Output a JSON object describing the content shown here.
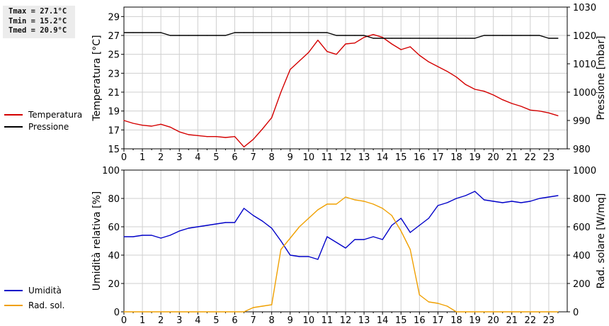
{
  "stats": {
    "tmax": "Tmax = 27.1°C",
    "tmin": "Tmin = 15.2°C",
    "tmed": "Tmed = 20.9°C"
  },
  "colors": {
    "temperature": "#d40000",
    "pressure": "#000000",
    "humidity": "#0000c8",
    "solar": "#f0a000",
    "grid": "#cfcfcf"
  },
  "chart_data": [
    {
      "type": "line",
      "ylabel": "Temperatura [°C]",
      "ylabel2": "Pressione [mbar]",
      "xlim": [
        0,
        24
      ],
      "ylim": [
        15,
        30
      ],
      "ylim2": [
        980,
        1030
      ],
      "xticks": [
        "0",
        "1",
        "2",
        "3",
        "4",
        "5",
        "6",
        "7",
        "8",
        "9",
        "10",
        "11",
        "12",
        "13",
        "14",
        "15",
        "16",
        "17",
        "18",
        "19",
        "20",
        "21",
        "22",
        "23"
      ],
      "yticks": [
        "15",
        "17",
        "19",
        "21",
        "23",
        "25",
        "27",
        "29"
      ],
      "yticks2": [
        "980",
        "990",
        "1000",
        "1010",
        "1020",
        "1030"
      ],
      "grid": true,
      "legend_position": "left",
      "series": [
        {
          "name": "Temperatura",
          "axis": "left",
          "x": [
            0,
            0.5,
            1,
            1.5,
            2,
            2.5,
            3,
            3.5,
            4,
            4.5,
            5,
            5.5,
            6,
            6.5,
            7,
            7.5,
            8,
            8.5,
            9,
            9.5,
            10,
            10.5,
            11,
            11.5,
            12,
            12.5,
            13,
            13.5,
            14,
            14.5,
            15,
            15.5,
            16,
            16.5,
            17,
            17.5,
            18,
            18.5,
            19,
            19.5,
            20,
            20.5,
            21,
            21.5,
            22,
            22.5,
            23,
            23.5
          ],
          "y": [
            18.0,
            17.7,
            17.5,
            17.4,
            17.6,
            17.3,
            16.8,
            16.5,
            16.4,
            16.3,
            16.3,
            16.2,
            16.3,
            15.2,
            16.0,
            17.1,
            18.3,
            21.0,
            23.4,
            24.3,
            25.2,
            26.5,
            25.3,
            25.0,
            26.1,
            26.2,
            26.8,
            27.1,
            26.8,
            26.1,
            25.5,
            25.8,
            24.9,
            24.2,
            23.7,
            23.2,
            22.6,
            21.8,
            21.3,
            21.1,
            20.7,
            20.2,
            19.8,
            19.5,
            19.1,
            19.0,
            18.8,
            18.5
          ]
        },
        {
          "name": "Pressione",
          "axis": "right",
          "x": [
            0,
            0.5,
            1,
            1.5,
            2,
            2.5,
            3,
            3.5,
            4,
            4.5,
            5,
            5.5,
            6,
            6.5,
            7,
            7.5,
            8,
            8.5,
            9,
            9.5,
            10,
            10.5,
            11,
            11.5,
            12,
            12.5,
            13,
            13.5,
            14,
            14.5,
            15,
            15.5,
            16,
            16.5,
            17,
            17.5,
            18,
            18.5,
            19,
            19.5,
            20,
            20.5,
            21,
            21.5,
            22,
            22.5,
            23,
            23.5
          ],
          "y": [
            1021,
            1021,
            1021,
            1021,
            1021,
            1020,
            1020,
            1020,
            1020,
            1020,
            1020,
            1020,
            1021,
            1021,
            1021,
            1021,
            1021,
            1021,
            1021,
            1021,
            1021,
            1021,
            1021,
            1020,
            1020,
            1020,
            1020,
            1019,
            1019,
            1019,
            1019,
            1019,
            1019,
            1019,
            1019,
            1019,
            1019,
            1019,
            1019,
            1020,
            1020,
            1020,
            1020,
            1020,
            1020,
            1020,
            1019,
            1019
          ]
        }
      ]
    },
    {
      "type": "line",
      "ylabel": "Umidità relativa [%]",
      "ylabel2": "Rad. solare [W/mq]",
      "xlim": [
        0,
        24
      ],
      "ylim": [
        0,
        100
      ],
      "ylim2": [
        0,
        1000
      ],
      "xticks": [
        "0",
        "1",
        "2",
        "3",
        "4",
        "5",
        "6",
        "7",
        "8",
        "9",
        "10",
        "11",
        "12",
        "13",
        "14",
        "15",
        "16",
        "17",
        "18",
        "19",
        "20",
        "21",
        "22",
        "23"
      ],
      "yticks": [
        "0",
        "20",
        "40",
        "60",
        "80",
        "100"
      ],
      "yticks2": [
        "0",
        "200",
        "400",
        "600",
        "800",
        "1000"
      ],
      "grid": true,
      "legend_position": "left",
      "series": [
        {
          "name": "Umidità",
          "axis": "left",
          "x": [
            0,
            0.5,
            1,
            1.5,
            2,
            2.5,
            3,
            3.5,
            4,
            4.5,
            5,
            5.5,
            6,
            6.5,
            7,
            7.5,
            8,
            8.5,
            9,
            9.5,
            10,
            10.5,
            11,
            11.5,
            12,
            12.5,
            13,
            13.5,
            14,
            14.5,
            15,
            15.5,
            16,
            16.5,
            17,
            17.5,
            18,
            18.5,
            19,
            19.5,
            20,
            20.5,
            21,
            21.5,
            22,
            22.5,
            23,
            23.5
          ],
          "y": [
            53,
            53,
            54,
            54,
            52,
            54,
            57,
            59,
            60,
            61,
            62,
            63,
            63,
            73,
            68,
            64,
            59,
            50,
            40,
            39,
            39,
            37,
            53,
            49,
            45,
            51,
            51,
            53,
            51,
            61,
            66,
            56,
            61,
            66,
            75,
            77,
            80,
            82,
            85,
            79,
            78,
            77,
            78,
            77,
            78,
            80,
            81,
            82
          ]
        },
        {
          "name": "Rad. sol.",
          "axis": "right",
          "x": [
            0,
            0.5,
            1,
            1.5,
            2,
            2.5,
            3,
            3.5,
            4,
            4.5,
            5,
            5.5,
            6,
            6.5,
            7,
            7.5,
            8,
            8.5,
            9,
            9.5,
            10,
            10.5,
            11,
            11.5,
            12,
            12.5,
            13,
            13.5,
            14,
            14.5,
            15,
            15.5,
            16,
            16.5,
            17,
            17.5,
            18,
            18.5,
            19,
            19.5,
            20,
            20.5,
            21,
            21.5,
            22,
            22.5,
            23,
            23.5
          ],
          "y": [
            0,
            0,
            0,
            0,
            0,
            0,
            0,
            0,
            0,
            0,
            0,
            0,
            0,
            0,
            30,
            40,
            50,
            440,
            520,
            600,
            660,
            720,
            760,
            760,
            810,
            790,
            780,
            760,
            730,
            680,
            570,
            440,
            120,
            70,
            60,
            40,
            0,
            0,
            0,
            0,
            0,
            0,
            0,
            0,
            0,
            0,
            0,
            0
          ]
        }
      ]
    }
  ]
}
